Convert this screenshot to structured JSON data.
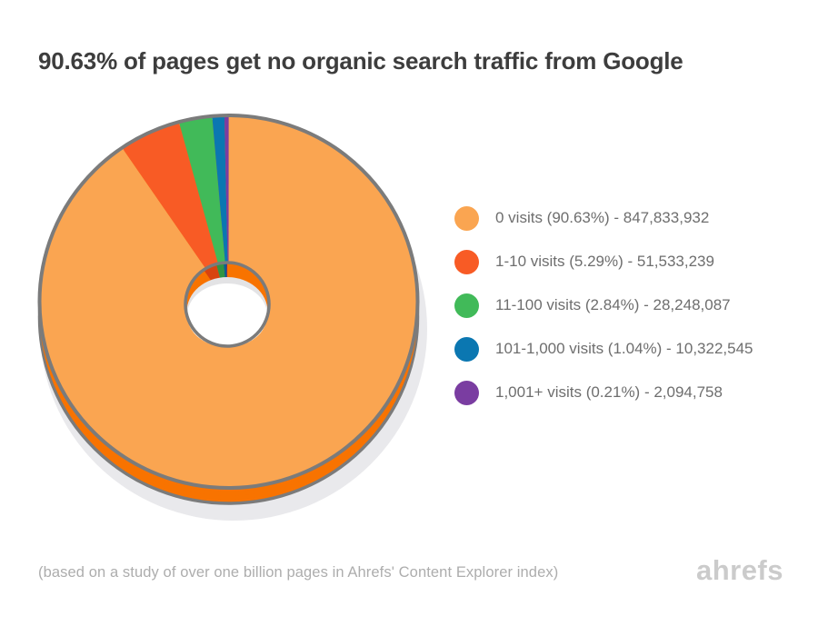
{
  "title": "90.63% of pages get no organic search traffic from Google",
  "footer": {
    "note": "(based on a study of over one billion pages in Ahrefs' Content Explorer index)",
    "brand": "ahrefs"
  },
  "chart_data": {
    "type": "pie",
    "donut": true,
    "title": "90.63% of pages get no organic search traffic from Google",
    "legend_position": "right",
    "start_angle_deg": 0,
    "direction": "clockwise",
    "stroke_color": "#7b7b7b",
    "shadow_color": "#e9e9ec",
    "hole_shade_color": "#e3e3e5",
    "hole_fill_color": "#ffffff",
    "slices": [
      {
        "label": "0 visits",
        "percent": 90.63,
        "value": 847833932,
        "value_display": "847,833,932",
        "color": "#faa551",
        "dark_color": "#f87300",
        "legend_text": "0 visits (90.63%) - 847,833,932"
      },
      {
        "label": "1-10 visits",
        "percent": 5.29,
        "value": 51533239,
        "value_display": "51,533,239",
        "color": "#f85b25",
        "dark_color": "#d8430f",
        "legend_text": "1-10 visits (5.29%) - 51,533,239"
      },
      {
        "label": "11-100 visits",
        "percent": 2.84,
        "value": 28248087,
        "value_display": "28,248,087",
        "color": "#41ba59",
        "dark_color": "#2f9444",
        "legend_text": "11-100 visits (2.84%) - 28,248,087"
      },
      {
        "label": "101-1,000 visits",
        "percent": 1.04,
        "value": 10322545,
        "value_display": "10,322,545",
        "color": "#0b77b1",
        "dark_color": "#07618f",
        "legend_text": "101-1,000 visits (1.04%) - 10,322,545"
      },
      {
        "label": "1,001+ visits",
        "percent": 0.21,
        "value": 2094758,
        "value_display": "2,094,758",
        "color": "#7a3da1",
        "dark_color": "#5b2d80",
        "legend_text": "1,001+ visits (0.21%) - 2,094,758"
      }
    ]
  }
}
